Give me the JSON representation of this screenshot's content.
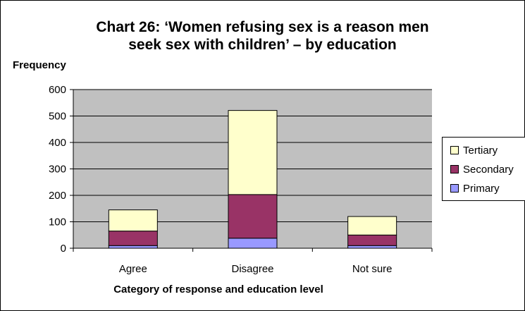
{
  "chart_data": {
    "type": "bar",
    "stacked": true,
    "title_line1": "Chart 26: ‘Women refusing sex is a reason men",
    "title_line2": "seek sex with children’ – by education",
    "ylabel": "Frequency",
    "xlabel": "Category of response and education level",
    "ylim": [
      0,
      600
    ],
    "yticks": [
      "0",
      "100",
      "200",
      "300",
      "400",
      "500",
      "600"
    ],
    "categories": [
      "Agree",
      "Disagree",
      "Not sure"
    ],
    "series": [
      {
        "name": "Primary",
        "values": [
          10,
          38,
          10
        ],
        "color": "#9999ff"
      },
      {
        "name": "Secondary",
        "values": [
          55,
          165,
          40
        ],
        "color": "#993366"
      },
      {
        "name": "Tertiary",
        "values": [
          80,
          318,
          70
        ],
        "color": "#ffffcc"
      }
    ],
    "legend_order": [
      "Tertiary",
      "Secondary",
      "Primary"
    ],
    "plot_bg": "#c0c0c0",
    "grid": true,
    "legend_position": "right"
  }
}
